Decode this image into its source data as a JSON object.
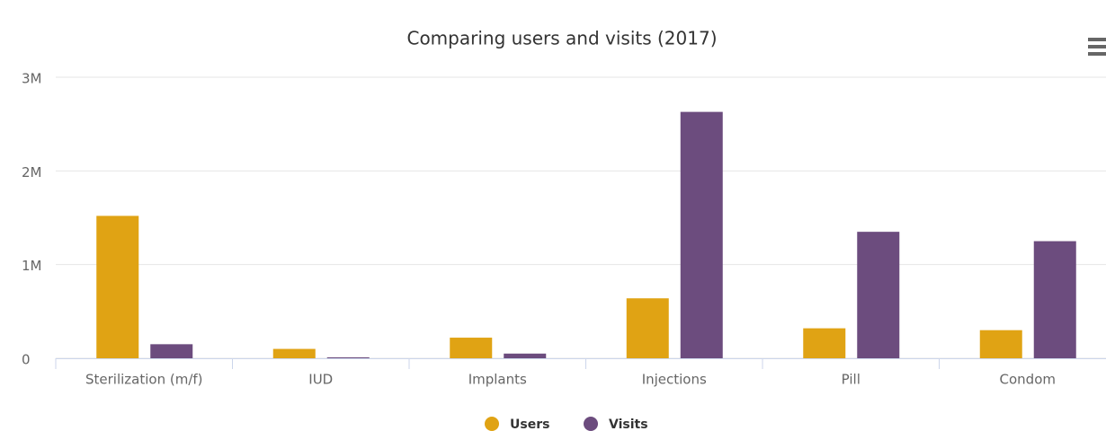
{
  "chart_data": {
    "type": "bar",
    "title": "Comparing users and visits (2017)",
    "categories": [
      "Sterilization (m/f)",
      "IUD",
      "Implants",
      "Injections",
      "Pill",
      "Condom"
    ],
    "series": [
      {
        "name": "Users",
        "color": "#e0a314",
        "values": [
          1520000,
          100000,
          220000,
          640000,
          320000,
          300000
        ]
      },
      {
        "name": "Visits",
        "color": "#6c4c7e",
        "values": [
          150000,
          10000,
          50000,
          2630000,
          1350000,
          1250000
        ]
      }
    ],
    "ylim": [
      0,
      3000000
    ],
    "yticks": [
      0,
      {
        "value": 1000000,
        "label": "1M"
      },
      {
        "value": 2000000,
        "label": "2M"
      },
      {
        "value": 3000000,
        "label": "3M"
      }
    ],
    "grid": true,
    "legend": "bottom"
  }
}
